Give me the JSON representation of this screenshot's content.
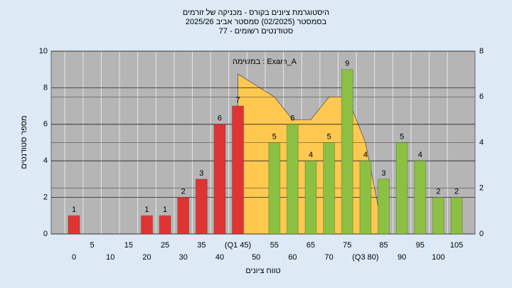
{
  "chart_data": {
    "type": "bar",
    "title": [
      "היסטוגרמת ציונים בקורס - מכניקה של זורמים",
      "בסמסטר  (02/2025)  סמסטר אביב 2025/26",
      "סטודנטים רשומים - 77"
    ],
    "annotation": "במשימה : Exam_A",
    "x_label": "טווח ציונים",
    "y_label": "מספר סטודנטים",
    "categories": [
      "0",
      "5",
      "10",
      "15",
      "20",
      "25",
      "30",
      "35",
      "40",
      "(Q1 45)",
      "50",
      "55",
      "60",
      "65",
      "70",
      "75",
      "(Q3 80)",
      "85",
      "90",
      "95",
      "100",
      "105"
    ],
    "values": [
      1,
      0,
      0,
      0,
      1,
      1,
      2,
      3,
      6,
      7,
      0,
      5,
      6,
      4,
      5,
      9,
      4,
      3,
      5,
      4,
      2,
      2
    ],
    "colors": [
      "#e03434",
      "#e03434",
      "#e03434",
      "#e03434",
      "#e03434",
      "#e03434",
      "#e03434",
      "#e03434",
      "#e03434",
      "#e03434",
      "#8cc043",
      "#8cc043",
      "#8cc043",
      "#8cc043",
      "#8cc043",
      "#8cc043",
      "#8cc043",
      "#8cc043",
      "#8cc043",
      "#8cc043",
      "#8cc043",
      "#8cc043"
    ],
    "ylim": [
      0,
      10
    ],
    "yticks": [
      0,
      2,
      4,
      6,
      8,
      10
    ],
    "y2lim": [
      0,
      8
    ],
    "y2ticks": [
      0,
      2,
      4,
      6,
      8
    ],
    "overlay": {
      "type": "area",
      "axis": "y2",
      "color": "#ffc850",
      "x": [
        45,
        50,
        55,
        60,
        65,
        70,
        75,
        80,
        85
      ],
      "values": [
        7,
        6.5,
        6,
        5,
        5,
        6,
        6,
        4,
        0
      ]
    },
    "grid": true
  }
}
